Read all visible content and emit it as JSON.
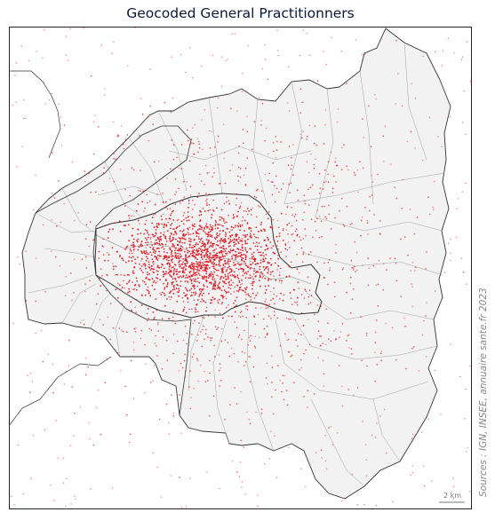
{
  "title": "Geocoded General Practitionners",
  "source_note": "Sources : IGN, INSEE, annuaire sante.fr 2023",
  "scale_bar": {
    "label": "2 km",
    "length_km": 2
  },
  "legend": null,
  "colors": {
    "point": "#e0141e",
    "territory_fill": "#f2f2f2",
    "boundary_outer": "#333333",
    "boundary_commune": "#a0a0a0",
    "frame": "#222222"
  },
  "map": {
    "region": "Paris and inner suburbs (petite couronne)",
    "layers": [
      "department boundaries",
      "commune boundaries",
      "GP locations"
    ],
    "density": "highest inside Paris, decreasing outward"
  }
}
